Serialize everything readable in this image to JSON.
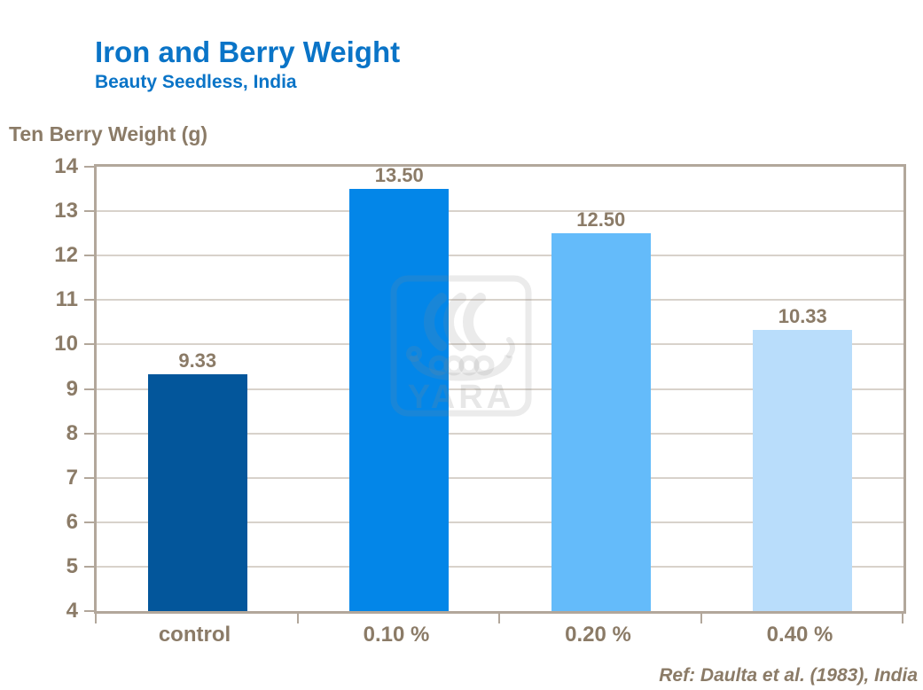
{
  "header": {
    "title": "Iron and Berry Weight",
    "subtitle": "Beauty Seedless, India"
  },
  "footer": {
    "ref": "Ref: Daulta et al. (1983), India"
  },
  "watermark": {
    "label": "YARA",
    "icon": "yara-viking-ship-logo"
  },
  "colors": {
    "title_blue": "#0A74C7",
    "text_brown": "#8B7B67",
    "gridline": "#D8D2CB",
    "plot_frame": "#B2A79B",
    "watermark_gray": "rgba(135,135,135,0.17)"
  },
  "chart_data": {
    "type": "bar",
    "title": "Iron and Berry Weight",
    "subtitle": "Beauty Seedless, India",
    "categories": [
      "control",
      "0.10 %",
      "0.20 %",
      "0.40 %"
    ],
    "values": [
      9.33,
      13.5,
      12.5,
      10.33
    ],
    "value_labels": [
      "9.33",
      "13.50",
      "12.50",
      "10.33"
    ],
    "bar_colors": [
      "#03569B",
      "#0386E8",
      "#64BBFA",
      "#B9DDFB"
    ],
    "xlabel": "",
    "ylabel": "Ten Berry Weight (g)",
    "ylim": [
      4,
      14
    ],
    "yticks": [
      4,
      5,
      6,
      7,
      8,
      9,
      10,
      11,
      12,
      13,
      14
    ],
    "grid": true,
    "legend": "none"
  }
}
